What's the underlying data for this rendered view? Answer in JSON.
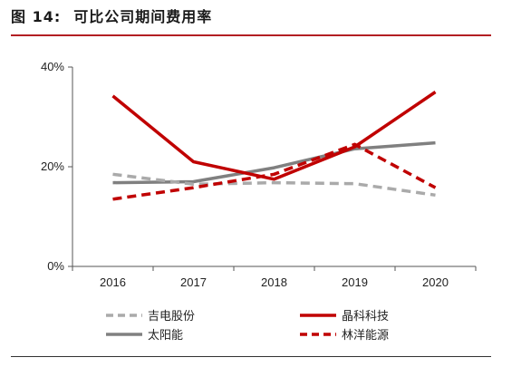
{
  "figure": {
    "label": "图 14:",
    "title": "可比公司期间费用率"
  },
  "colors": {
    "accent_rule": "#b31e23",
    "axis": "#555555"
  },
  "chart_data": {
    "type": "line",
    "x": [
      "2016",
      "2017",
      "2018",
      "2019",
      "2020"
    ],
    "ylim": [
      0,
      40
    ],
    "yticks": [
      0,
      20,
      40
    ],
    "ytick_labels": [
      "0%",
      "20%",
      "40%"
    ],
    "grid": false,
    "legend_position": "bottom",
    "series": [
      {
        "name": "吉电股份",
        "values": [
          18.5,
          16.5,
          16.8,
          16.6,
          14.3
        ],
        "color": "#aaaaaa",
        "dash": true
      },
      {
        "name": "晶科科技",
        "values": [
          34.2,
          21.0,
          17.5,
          24.0,
          35.0
        ],
        "color": "#c00000",
        "dash": false
      },
      {
        "name": "太阳能",
        "values": [
          16.8,
          17.0,
          19.8,
          23.6,
          24.8
        ],
        "color": "#808080",
        "dash": false
      },
      {
        "name": "林洋能源",
        "values": [
          13.5,
          15.8,
          18.5,
          24.5,
          15.8
        ],
        "color": "#c00000",
        "dash": true
      }
    ]
  }
}
